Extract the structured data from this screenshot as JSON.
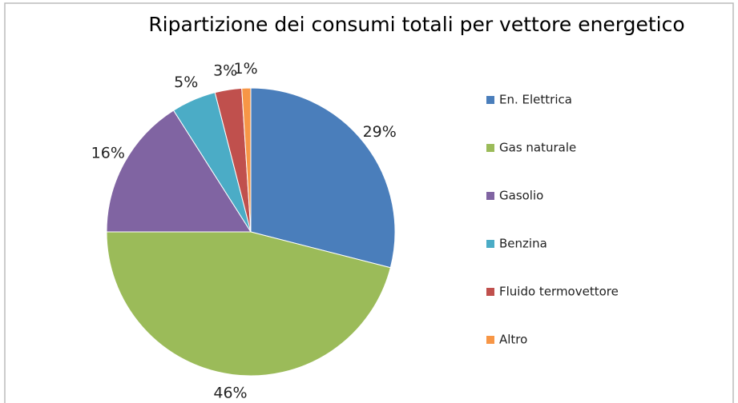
{
  "chart_data": {
    "type": "pie",
    "title": "Ripartizione dei consumi totali per vettore energetico",
    "categories": [
      "En. Elettrica",
      "Gas naturale",
      "Gasolio",
      "Benzina",
      "Fluido termovettore",
      "Altro"
    ],
    "values": [
      29,
      46,
      16,
      5,
      3,
      1
    ],
    "value_labels": [
      "29%",
      "46%",
      "16%",
      "5%",
      "3%",
      "1%"
    ],
    "colors": [
      "#4a7ebb",
      "#9bbb59",
      "#8064a2",
      "#4bacc6",
      "#c0504d",
      "#f79646"
    ],
    "legend": "right"
  }
}
